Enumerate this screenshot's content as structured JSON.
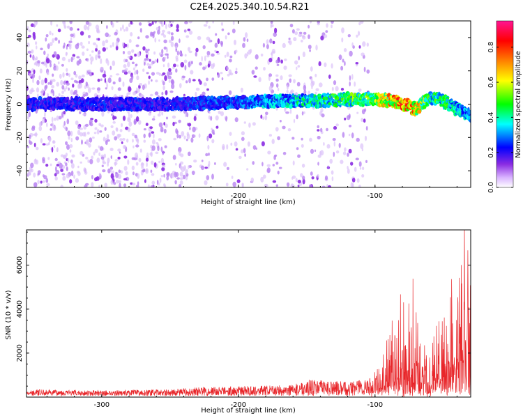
{
  "title": "C2E4.2025.340.10.54.R21",
  "colors": {
    "signal_line": "#e8262a",
    "frame": "#000000"
  },
  "chart_data": [
    {
      "type": "heatmap",
      "title": "C2E4.2025.340.10.54.R21",
      "xlabel": "Height of straight line (km)",
      "ylabel": "Frequency (Hz)",
      "xlim": [
        -355,
        -30
      ],
      "ylim": [
        -50,
        50
      ],
      "xticks": [
        -300,
        -200,
        -100
      ],
      "yticks": [
        -40,
        -20,
        0,
        20,
        40
      ],
      "colorbar": {
        "label": "Normalized spectral amplitude",
        "range": [
          0,
          0.95
        ],
        "ticks": [
          0.0,
          0.2,
          0.4,
          0.6,
          0.8
        ],
        "colormap": [
          "#ffffff",
          "#8a2be2",
          "#0000ff",
          "#00ffff",
          "#00ff00",
          "#ffff00",
          "#ff8000",
          "#ff0000",
          "#ff1493"
        ]
      },
      "ridge": {
        "x": [
          -355,
          -300,
          -250,
          -200,
          -180,
          -160,
          -140,
          -120,
          -100,
          -90,
          -80,
          -70,
          -60,
          -50,
          -40,
          -30
        ],
        "y": [
          0,
          0,
          0,
          1,
          2,
          2,
          2,
          3,
          3,
          2,
          0,
          -3,
          4,
          2,
          -3,
          -7
        ],
        "amplitude": [
          0.25,
          0.25,
          0.25,
          0.3,
          0.35,
          0.4,
          0.45,
          0.5,
          0.55,
          0.7,
          0.85,
          0.75,
          0.45,
          0.5,
          0.4,
          0.35
        ]
      },
      "noise_band": {
        "dense_x_range": [
          -355,
          -235
        ],
        "sparse_x_range": [
          -235,
          -105
        ],
        "empty_x_range": [
          -105,
          -30
        ]
      }
    },
    {
      "type": "line",
      "xlabel": "Height of straight line (km)",
      "ylabel": "SNR (10 * v/v)",
      "xlim": [
        -355,
        -30
      ],
      "ylim": [
        0,
        7600
      ],
      "xticks": [
        -300,
        -200,
        -100
      ],
      "yticks": [
        2000,
        4000,
        6000
      ],
      "series": [
        {
          "name": "SNR",
          "color": "#e8262a",
          "envelope_x": [
            -355,
            -300,
            -250,
            -230,
            -200,
            -160,
            -150,
            -120,
            -105,
            -95,
            -90,
            -85,
            -80,
            -75,
            -72,
            -70,
            -65,
            -60,
            -55,
            -50,
            -45,
            -40,
            -37,
            -35,
            -32,
            -30
          ],
          "envelope_y": [
            350,
            300,
            350,
            450,
            500,
            550,
            800,
            700,
            900,
            1600,
            2800,
            3800,
            4500,
            4200,
            5600,
            3500,
            2500,
            2200,
            4500,
            3300,
            5000,
            4700,
            7300,
            7600,
            6200,
            6800
          ]
        }
      ]
    }
  ]
}
